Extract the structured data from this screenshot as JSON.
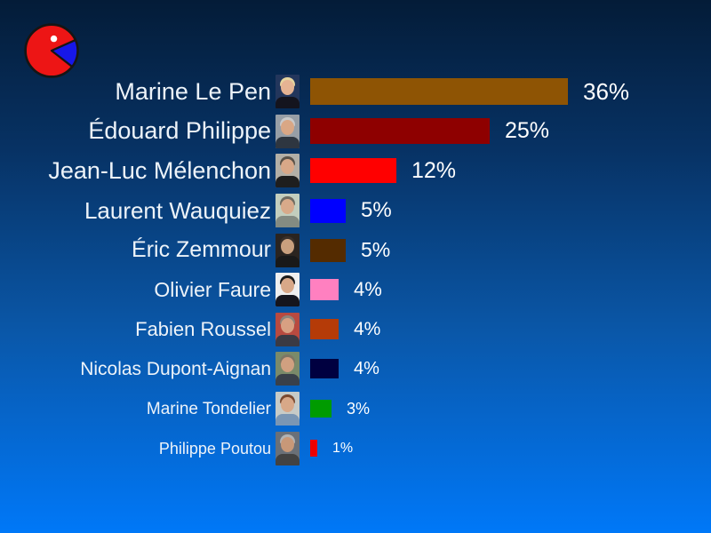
{
  "logo": {
    "description": "pie-pacman-logo",
    "colors": {
      "body": "#ED1515",
      "wedge": "#1717E8",
      "eye": "#FFFFFF",
      "outline": "#151515"
    }
  },
  "background": {
    "top": "#041C38",
    "upper_mid": "#073264",
    "lower_mid": "#0A57A8",
    "bottom": "#0078F8"
  },
  "chart_data": {
    "type": "bar",
    "orientation": "horizontal",
    "title": "",
    "xlabel": "",
    "ylabel": "",
    "unit": "%",
    "xlim": [
      0,
      40
    ],
    "grid": false,
    "legend": null,
    "categories": [
      "Marine Le Pen",
      "Édouard Philippe",
      "Jean-Luc Mélenchon",
      "Laurent Wauquiez",
      "Éric Zemmour",
      "Olivier Faure",
      "Fabien Roussel",
      "Nicolas Dupont-Aignan",
      "Marine Tondelier",
      "Philippe Poutou"
    ],
    "values": [
      36,
      25,
      12,
      5,
      5,
      4,
      4,
      4,
      3,
      1
    ],
    "rows": [
      {
        "name": "Marine Le Pen",
        "value": 36,
        "label": "36%",
        "bar_color": "#8E5404",
        "photo": {
          "bg": "#23365C",
          "hair": "#E6D49E",
          "skin": "#E5B393",
          "jacket": "#14141E"
        }
      },
      {
        "name": "Édouard Philippe",
        "value": 25,
        "label": "25%",
        "bar_color": "#8E0000",
        "photo": {
          "bg": "#979EA6",
          "hair": "#C9C9C9",
          "skin": "#D9A785",
          "jacket": "#2E3640"
        }
      },
      {
        "name": "Jean-Luc Mélenchon",
        "value": 12,
        "label": "12%",
        "bar_color": "#FF0000",
        "photo": {
          "bg": "#B3AFA6",
          "hair": "#5A5248",
          "skin": "#D8A888",
          "jacket": "#1E1E1E"
        }
      },
      {
        "name": "Laurent Wauquiez",
        "value": 5,
        "label": "5%",
        "bar_color": "#0000FF",
        "photo": {
          "bg": "#C3CEBE",
          "hair": "#6F6B60",
          "skin": "#D8AA8A",
          "jacket": "#848B82"
        }
      },
      {
        "name": "Éric Zemmour",
        "value": 5,
        "label": "5%",
        "bar_color": "#542B00",
        "photo": {
          "bg": "#2A2420",
          "hair": "#39302A",
          "skin": "#C9A07E",
          "jacket": "#191919"
        }
      },
      {
        "name": "Olivier Faure",
        "value": 4,
        "label": "4%",
        "bar_color": "#FF80C0",
        "photo": {
          "bg": "#EFEFEF",
          "hair": "#1B1B1B",
          "skin": "#D8A888",
          "jacket": "#15151D"
        }
      },
      {
        "name": "Fabien Roussel",
        "value": 4,
        "label": "4%",
        "bar_color": "#B53B08",
        "photo": {
          "bg": "#B84A40",
          "hair": "#8D837A",
          "skin": "#D8A082",
          "jacket": "#3A3A44"
        }
      },
      {
        "name": "Nicolas Dupont-Aignan",
        "value": 4,
        "label": "4%",
        "bar_color": "#000040",
        "photo": {
          "bg": "#7A8A6A",
          "hair": "#7E7664",
          "skin": "#D0A080",
          "jacket": "#39404A"
        }
      },
      {
        "name": "Marine Tondelier",
        "value": 3,
        "label": "3%",
        "bar_color": "#009B00",
        "photo": {
          "bg": "#C7CBC7",
          "hair": "#7A4A30",
          "skin": "#D8A888",
          "jacket": "#7A96B4"
        }
      },
      {
        "name": "Philippe Poutou",
        "value": 1,
        "label": "1%",
        "bar_color": "#EE0000",
        "photo": {
          "bg": "#6A7078",
          "hair": "#B2B2B2",
          "skin": "#C89878",
          "jacket": "#424242"
        }
      }
    ]
  }
}
